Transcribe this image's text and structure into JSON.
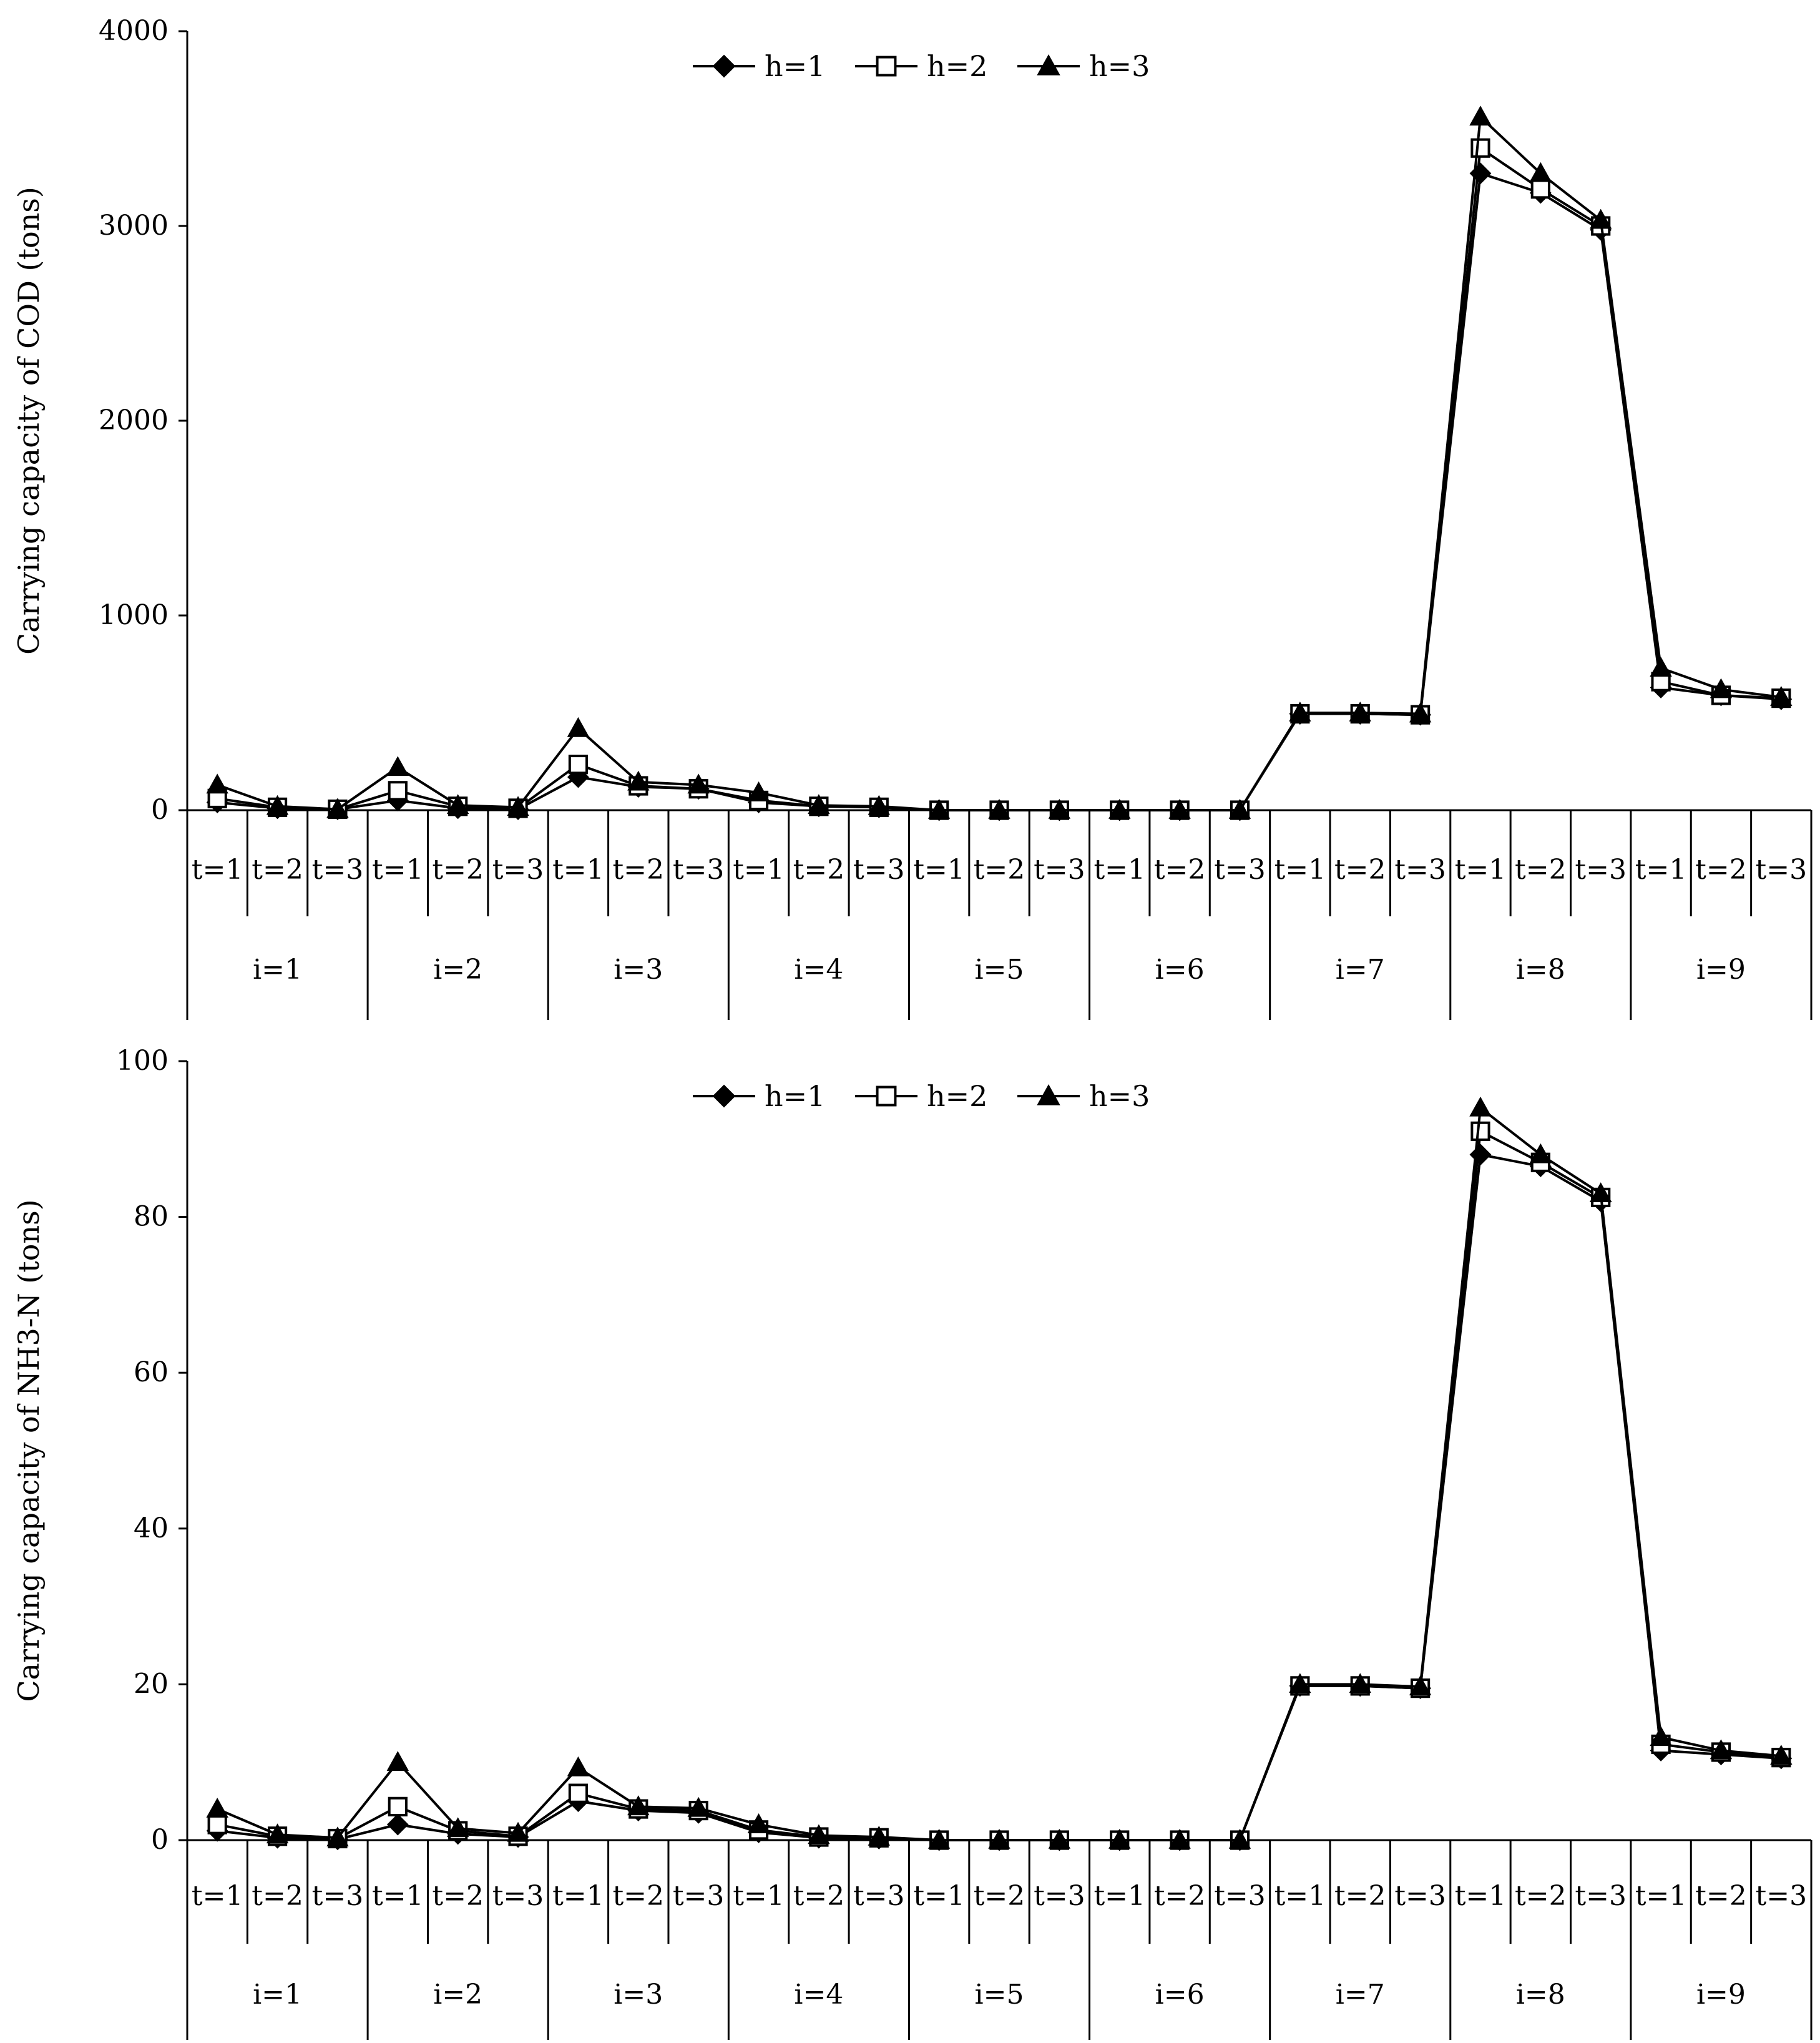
{
  "colors": {
    "line": "#000000",
    "background": "#ffffff"
  },
  "group_labels": [
    "i=1",
    "i=2",
    "i=3",
    "i=4",
    "i=5",
    "i=6",
    "i=7",
    "i=8",
    "i=9"
  ],
  "period_labels": [
    "t=1",
    "t=2",
    "t=3"
  ],
  "chart_data": [
    {
      "type": "line",
      "title": "",
      "xlabel": "",
      "ylabel": "Carrying capacity of COD (tons)",
      "ylim": [
        0,
        4000
      ],
      "yticks": [
        "0",
        "1000",
        "2000",
        "3000",
        "4000"
      ],
      "legend_position": "top-center",
      "series": [
        {
          "name": "h=1",
          "marker": "diamond",
          "values": [
            40,
            10,
            5,
            50,
            10,
            5,
            170,
            120,
            110,
            40,
            20,
            15,
            0,
            0,
            0,
            0,
            0,
            0,
            495,
            495,
            490,
            3270,
            3170,
            2980,
            630,
            590,
            570
          ]
        },
        {
          "name": "h=2",
          "marker": "square",
          "values": [
            60,
            15,
            5,
            100,
            20,
            10,
            235,
            125,
            110,
            50,
            20,
            15,
            0,
            0,
            0,
            0,
            0,
            0,
            495,
            495,
            490,
            3400,
            3190,
            3000,
            660,
            590,
            575
          ]
        },
        {
          "name": "h=3",
          "marker": "triangle",
          "values": [
            130,
            20,
            5,
            220,
            25,
            15,
            420,
            145,
            130,
            90,
            25,
            20,
            0,
            0,
            0,
            0,
            0,
            0,
            500,
            500,
            495,
            3560,
            3270,
            3030,
            730,
            620,
            580
          ]
        }
      ]
    },
    {
      "type": "line",
      "title": "",
      "xlabel": "",
      "ylabel": "Carrying capacity of NH3-N (tons)",
      "ylim": [
        0,
        100
      ],
      "yticks": [
        "0",
        "20",
        "40",
        "60",
        "80",
        "100"
      ],
      "legend_position": "top-center",
      "series": [
        {
          "name": "h=1",
          "marker": "diamond",
          "values": [
            1.2,
            0.3,
            0.1,
            2.0,
            0.8,
            0.4,
            5.0,
            3.8,
            3.5,
            1.0,
            0.3,
            0.2,
            0,
            0,
            0,
            0,
            0,
            0,
            19.8,
            19.8,
            19.5,
            88,
            86.5,
            82,
            11.5,
            11,
            10.5
          ]
        },
        {
          "name": "h=2",
          "marker": "square",
          "values": [
            2.0,
            0.5,
            0.2,
            4.3,
            1.2,
            0.5,
            6.0,
            4.0,
            3.8,
            1.3,
            0.4,
            0.3,
            0,
            0,
            0,
            0,
            0,
            0,
            19.8,
            19.8,
            19.5,
            91,
            87,
            82.5,
            12.3,
            11.3,
            10.6
          ]
        },
        {
          "name": "h=3",
          "marker": "triangle",
          "values": [
            4.0,
            0.7,
            0.3,
            10.0,
            1.5,
            0.9,
            9.3,
            4.3,
            4.1,
            2.0,
            0.6,
            0.4,
            0,
            0,
            0,
            0,
            0,
            0,
            20,
            20,
            19.7,
            94,
            88,
            83,
            13.2,
            11.5,
            10.8
          ]
        }
      ]
    }
  ]
}
